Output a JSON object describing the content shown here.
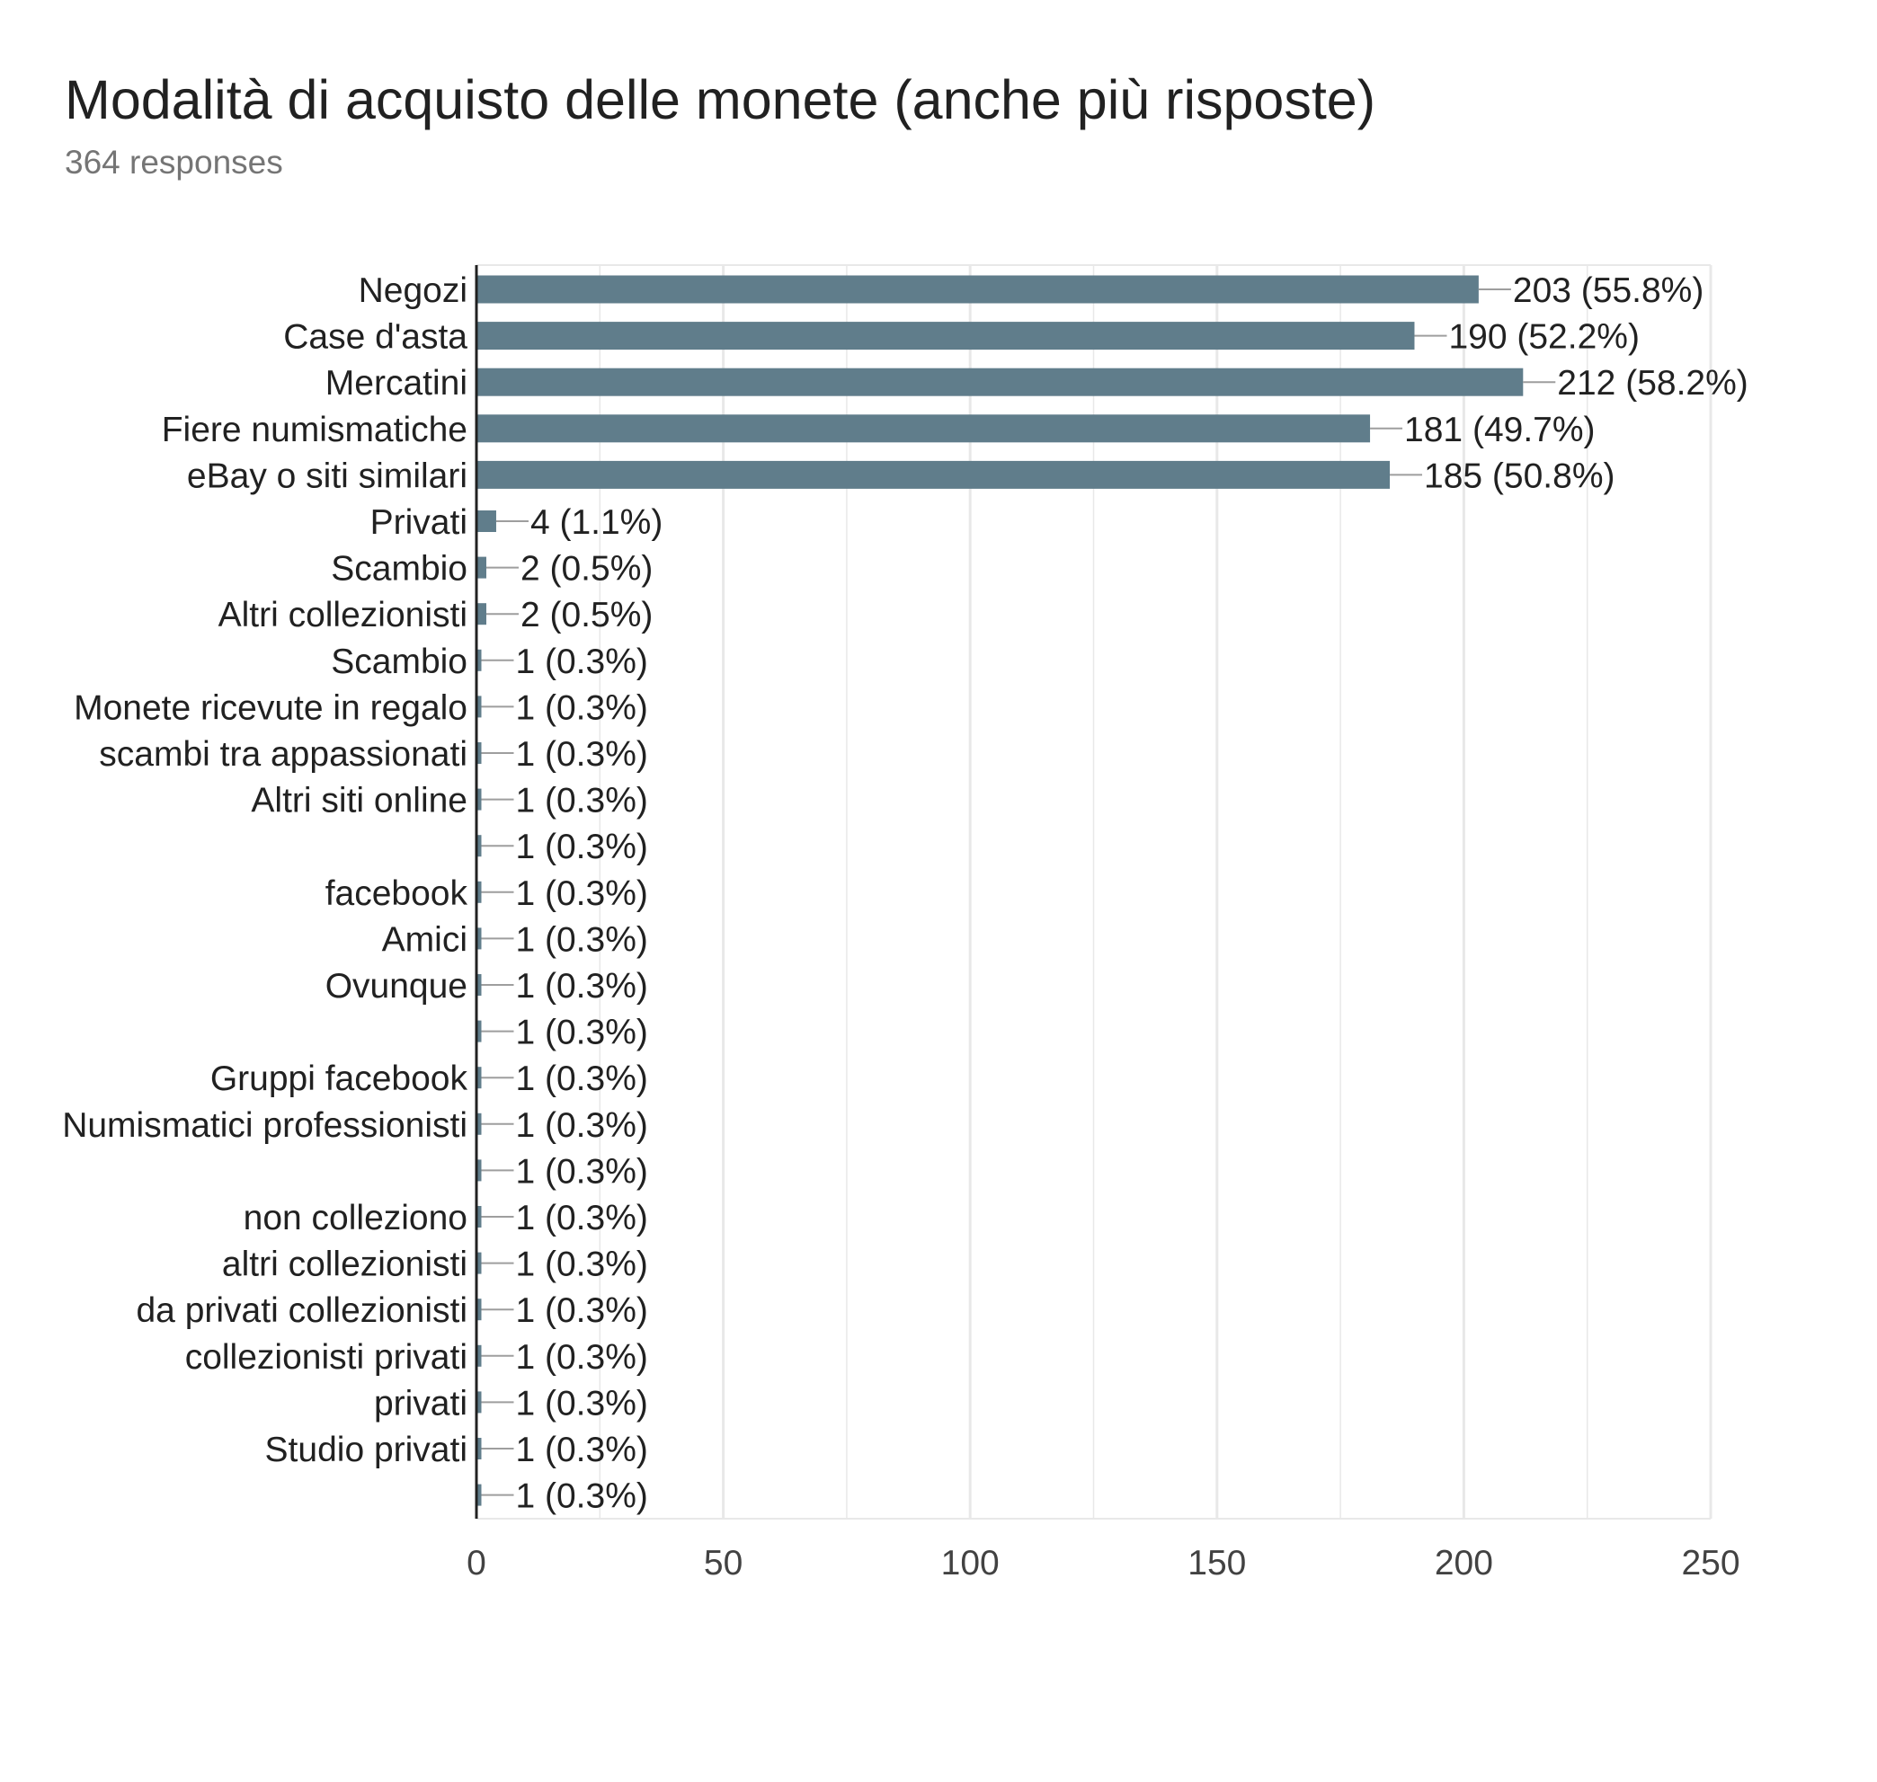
{
  "header": {
    "title": "Modalità di acquisto delle monete (anche più risposte)",
    "subtitle": "364 responses"
  },
  "colors": {
    "bar": "#607d8b",
    "grid": "#e8e8e8",
    "axis": "#212121",
    "leader": "#9e9e9e",
    "text": "#212121"
  },
  "chart_data": {
    "type": "bar",
    "orientation": "horizontal",
    "title": "Modalità di acquisto delle monete (anche più risposte)",
    "subtitle": "364 responses",
    "categories": [
      "Negozi",
      "Case d'asta",
      "Mercatini",
      "Fiere numismatiche",
      "eBay o siti similari",
      "Privati",
      "Scambio",
      "Altri collezionisti",
      "Scambio",
      "Monete ricevute in regalo",
      "scambi tra appassionati",
      "Altri siti online",
      "",
      "facebook",
      "Amici",
      "Ovunque",
      "",
      "Gruppi facebook",
      "Numismatici professionisti",
      "",
      "non colleziono",
      "altri collezionisti",
      "da privati collezionisti",
      "collezionisti privati",
      "privati",
      "Studio privati",
      ""
    ],
    "values": [
      203,
      190,
      212,
      181,
      185,
      4,
      2,
      2,
      1,
      1,
      1,
      1,
      1,
      1,
      1,
      1,
      1,
      1,
      1,
      1,
      1,
      1,
      1,
      1,
      1,
      1,
      1
    ],
    "value_labels": [
      "203 (55.8%)",
      "190 (52.2%)",
      "212 (58.2%)",
      "181 (49.7%)",
      "185 (50.8%)",
      "4 (1.1%)",
      "2 (0.5%)",
      "2 (0.5%)",
      "1 (0.3%)",
      "1 (0.3%)",
      "1 (0.3%)",
      "1 (0.3%)",
      "1 (0.3%)",
      "1 (0.3%)",
      "1 (0.3%)",
      "1 (0.3%)",
      "1 (0.3%)",
      "1 (0.3%)",
      "1 (0.3%)",
      "1 (0.3%)",
      "1 (0.3%)",
      "1 (0.3%)",
      "1 (0.3%)",
      "1 (0.3%)",
      "1 (0.3%)",
      "1 (0.3%)",
      "1 (0.3%)"
    ],
    "xlim": [
      0,
      250
    ],
    "xticks": [
      0,
      50,
      100,
      150,
      200,
      250
    ],
    "grid": true,
    "legend": "none"
  }
}
